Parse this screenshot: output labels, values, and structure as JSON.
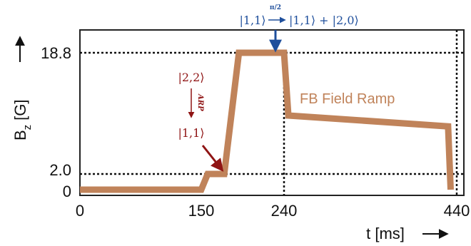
{
  "chart_data": {
    "type": "line",
    "x": [
      0,
      150,
      157,
      170,
      175,
      191,
      200,
      240,
      245,
      430,
      433
    ],
    "series": [
      {
        "name": "FB Field Ramp",
        "values": [
          0,
          0,
          2.0,
          2.0,
          2.0,
          18.8,
          18.8,
          18.8,
          10.1,
          8.6,
          0
        ],
        "color": "#c0835a"
      }
    ],
    "xlabel": "t [ms]",
    "ylabel": "B",
    "ylabel_subscript": "z",
    "ylabel_unit": "[G]",
    "x_ticks": [
      "0",
      "150",
      "240",
      "440"
    ],
    "x_tick_values": [
      0,
      150,
      240,
      440
    ],
    "y_ticks": [
      "0",
      "2.0",
      "18.8"
    ],
    "y_tick_values": [
      0,
      2.0,
      18.8
    ],
    "xlim": [
      0,
      440
    ],
    "ylim": [
      0,
      18.8
    ],
    "grid": false,
    "reference_lines": {
      "horizontal": [
        2.0,
        18.8
      ],
      "vertical": [
        240,
        440
      ],
      "style": "dotted"
    },
    "annotations": {
      "ramp_label": "FB Field Ramp",
      "arp_top": "|2,2⟩",
      "arp_mid": "ARP",
      "arp_bottom": "|1,1⟩",
      "arp_color": "#8f1414",
      "pulse_left": "|1,1⟩",
      "pulse_over": "π/2",
      "pulse_right": "|1,1⟩ + |2,0⟩",
      "pulse_color": "#1f4f9c"
    }
  }
}
